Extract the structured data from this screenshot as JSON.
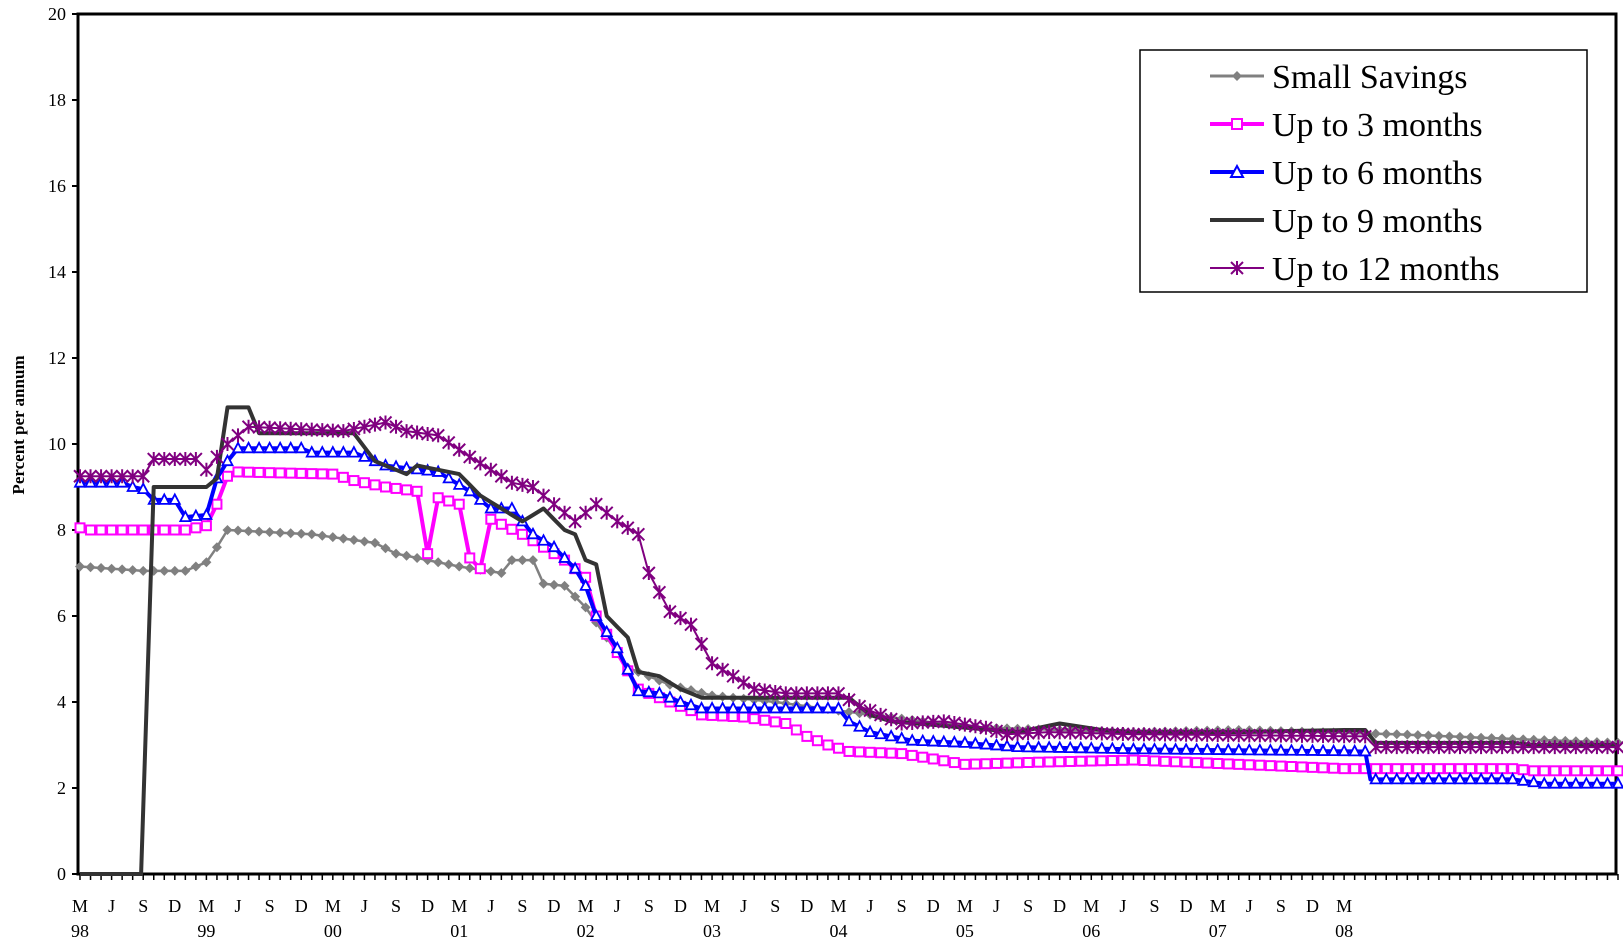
{
  "chart_data": {
    "type": "line",
    "title": "",
    "ylabel": "Percent per annum",
    "xlabel": "",
    "ylim": [
      0,
      20
    ],
    "yticks": [
      "0",
      "2",
      "4",
      "6",
      "8",
      "10",
      "12",
      "14",
      "16",
      "18",
      "20"
    ],
    "grid": false,
    "legend_position": "top-right",
    "x_tick_letters": [
      "M",
      "J",
      "S",
      "D",
      "M",
      "J",
      "S",
      "D",
      "M",
      "J",
      "S",
      "D",
      "M",
      "J",
      "S",
      "D",
      "M",
      "J",
      "S",
      "D",
      "M",
      "J",
      "S",
      "D",
      "M",
      "J",
      "S",
      "D",
      "M",
      "J",
      "S",
      "D",
      "M",
      "J",
      "S",
      "D",
      "M",
      "J",
      "S",
      "D",
      "M"
    ],
    "x_year_labels": [
      "98",
      "99",
      "00",
      "01",
      "02",
      "03",
      "04",
      "05",
      "06",
      "07",
      "08"
    ],
    "x_start": "1998-03",
    "x_end": "2008-05",
    "series": [
      {
        "name": "Small Savings",
        "color": "#808080",
        "marker": "diamond",
        "keyframes": [
          [
            0,
            7.15
          ],
          [
            6,
            7.05
          ],
          [
            10,
            7.05
          ],
          [
            12,
            7.25
          ],
          [
            13,
            7.6
          ],
          [
            14,
            8.0
          ],
          [
            22,
            7.9
          ],
          [
            28,
            7.7
          ],
          [
            30,
            7.45
          ],
          [
            36,
            7.15
          ],
          [
            40,
            7.0
          ],
          [
            41,
            7.3
          ],
          [
            43,
            7.3
          ],
          [
            44,
            6.75
          ],
          [
            46,
            6.7
          ],
          [
            48,
            6.2
          ],
          [
            50,
            5.5
          ],
          [
            52,
            4.8
          ],
          [
            56,
            4.4
          ],
          [
            60,
            4.15
          ],
          [
            66,
            4.0
          ],
          [
            72,
            3.8
          ],
          [
            80,
            3.55
          ],
          [
            86,
            3.4
          ],
          [
            100,
            3.3
          ],
          [
            110,
            3.35
          ],
          [
            125,
            3.25
          ],
          [
            135,
            3.15
          ],
          [
            146,
            3.05
          ]
        ]
      },
      {
        "name": "Up to 3 months",
        "color": "#ff00ff",
        "marker": "square",
        "keyframes": [
          [
            0,
            8.05
          ],
          [
            1,
            8.0
          ],
          [
            10,
            8.0
          ],
          [
            12,
            8.1
          ],
          [
            13,
            8.6
          ],
          [
            14,
            9.25
          ],
          [
            15,
            9.35
          ],
          [
            24,
            9.3
          ],
          [
            26,
            9.15
          ],
          [
            29,
            9.0
          ],
          [
            32,
            8.9
          ],
          [
            33,
            7.45
          ],
          [
            34,
            8.75
          ],
          [
            36,
            8.6
          ],
          [
            37,
            7.35
          ],
          [
            38,
            7.1
          ],
          [
            39,
            8.25
          ],
          [
            42,
            7.9
          ],
          [
            44,
            7.6
          ],
          [
            46,
            7.3
          ],
          [
            48,
            6.9
          ],
          [
            49,
            6.0
          ],
          [
            51,
            5.15
          ],
          [
            53,
            4.3
          ],
          [
            55,
            4.1
          ],
          [
            57,
            3.9
          ],
          [
            59,
            3.7
          ],
          [
            63,
            3.65
          ],
          [
            67,
            3.5
          ],
          [
            69,
            3.2
          ],
          [
            71,
            3.0
          ],
          [
            73,
            2.85
          ],
          [
            78,
            2.8
          ],
          [
            84,
            2.55
          ],
          [
            91,
            2.6
          ],
          [
            100,
            2.65
          ],
          [
            110,
            2.55
          ],
          [
            120,
            2.45
          ],
          [
            136,
            2.45
          ],
          [
            138,
            2.4
          ],
          [
            146,
            2.4
          ]
        ]
      },
      {
        "name": "Up to 6 months",
        "color": "#0000ff",
        "marker": "triangle",
        "keyframes": [
          [
            0,
            9.1
          ],
          [
            4,
            9.1
          ],
          [
            5,
            9.0
          ],
          [
            6,
            8.95
          ],
          [
            7,
            8.7
          ],
          [
            9,
            8.7
          ],
          [
            10,
            8.3
          ],
          [
            12,
            8.35
          ],
          [
            13,
            9.2
          ],
          [
            14,
            9.6
          ],
          [
            15,
            9.9
          ],
          [
            21,
            9.9
          ],
          [
            22,
            9.8
          ],
          [
            26,
            9.8
          ],
          [
            29,
            9.5
          ],
          [
            34,
            9.35
          ],
          [
            37,
            8.9
          ],
          [
            39,
            8.5
          ],
          [
            41,
            8.5
          ],
          [
            43,
            7.9
          ],
          [
            45,
            7.6
          ],
          [
            47,
            7.1
          ],
          [
            48,
            6.7
          ],
          [
            49,
            6.0
          ],
          [
            51,
            5.25
          ],
          [
            53,
            4.25
          ],
          [
            55,
            4.2
          ],
          [
            57,
            4.0
          ],
          [
            59,
            3.85
          ],
          [
            72,
            3.85
          ],
          [
            73,
            3.55
          ],
          [
            75,
            3.3
          ],
          [
            76,
            3.25
          ],
          [
            79,
            3.1
          ],
          [
            84,
            3.05
          ],
          [
            89,
            2.95
          ],
          [
            100,
            2.9
          ],
          [
            122,
            2.85
          ],
          [
            122.5,
            2.2
          ],
          [
            136,
            2.2
          ],
          [
            139,
            2.1
          ],
          [
            146,
            2.1
          ]
        ]
      },
      {
        "name": "Up to 9 months",
        "color": "#333333",
        "marker": "none",
        "keyframes": [
          [
            0,
            0.0
          ],
          [
            5.8,
            0.0
          ],
          [
            7,
            9.0
          ],
          [
            12,
            9.0
          ],
          [
            13,
            9.2
          ],
          [
            14,
            10.85
          ],
          [
            16,
            10.85
          ],
          [
            17,
            10.25
          ],
          [
            26,
            10.25
          ],
          [
            28,
            9.6
          ],
          [
            31,
            9.3
          ],
          [
            32,
            9.5
          ],
          [
            36,
            9.3
          ],
          [
            38,
            8.8
          ],
          [
            40,
            8.5
          ],
          [
            42,
            8.2
          ],
          [
            44,
            8.5
          ],
          [
            46,
            8.0
          ],
          [
            47,
            7.9
          ],
          [
            48,
            7.3
          ],
          [
            49,
            7.2
          ],
          [
            50,
            6.0
          ],
          [
            52,
            5.5
          ],
          [
            53,
            4.7
          ],
          [
            55,
            4.6
          ],
          [
            57,
            4.3
          ],
          [
            59,
            4.1
          ],
          [
            73,
            4.1
          ],
          [
            75,
            3.7
          ],
          [
            77,
            3.55
          ],
          [
            89,
            3.3
          ],
          [
            93,
            3.5
          ],
          [
            97,
            3.35
          ],
          [
            100,
            3.3
          ],
          [
            110,
            3.3
          ],
          [
            120,
            3.35
          ],
          [
            122,
            3.35
          ],
          [
            123,
            3.05
          ],
          [
            136,
            3.05
          ],
          [
            138,
            3.0
          ],
          [
            146,
            3.0
          ]
        ]
      },
      {
        "name": "Up to 12 months",
        "color": "#800080",
        "marker": "star",
        "keyframes": [
          [
            0,
            9.25
          ],
          [
            6,
            9.25
          ],
          [
            7,
            9.65
          ],
          [
            11,
            9.65
          ],
          [
            12,
            9.4
          ],
          [
            14,
            10.0
          ],
          [
            16,
            10.4
          ],
          [
            25,
            10.3
          ],
          [
            27,
            10.4
          ],
          [
            29,
            10.5
          ],
          [
            31,
            10.3
          ],
          [
            34,
            10.2
          ],
          [
            37,
            9.7
          ],
          [
            39,
            9.4
          ],
          [
            41,
            9.1
          ],
          [
            43,
            9.0
          ],
          [
            45,
            8.6
          ],
          [
            47,
            8.2
          ],
          [
            49,
            8.6
          ],
          [
            51,
            8.2
          ],
          [
            53,
            7.9
          ],
          [
            54,
            7.0
          ],
          [
            56,
            6.1
          ],
          [
            58,
            5.8
          ],
          [
            60,
            4.9
          ],
          [
            62,
            4.6
          ],
          [
            64,
            4.3
          ],
          [
            67,
            4.2
          ],
          [
            72,
            4.2
          ],
          [
            74,
            3.9
          ],
          [
            76,
            3.7
          ],
          [
            78,
            3.5
          ],
          [
            82,
            3.55
          ],
          [
            86,
            3.4
          ],
          [
            88,
            3.25
          ],
          [
            92,
            3.3
          ],
          [
            100,
            3.25
          ],
          [
            122,
            3.2
          ],
          [
            123,
            2.95
          ],
          [
            146,
            2.95
          ]
        ]
      }
    ]
  }
}
